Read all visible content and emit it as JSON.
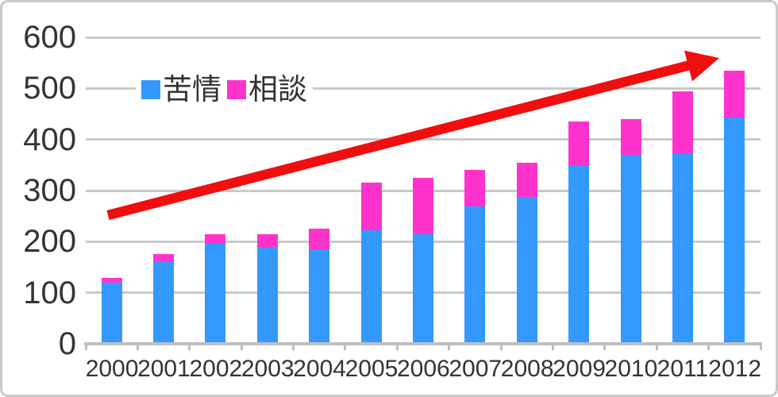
{
  "chart_data": {
    "type": "bar",
    "stacked": true,
    "title": "",
    "categories": [
      "2000",
      "2001",
      "2002",
      "2003",
      "2004",
      "2005",
      "2006",
      "2007",
      "2008",
      "2009",
      "2010",
      "2011",
      "2012"
    ],
    "series": [
      {
        "name": "苦情",
        "color": "#3399FF",
        "values": [
          119,
          160,
          196,
          188,
          185,
          222,
          214,
          269,
          288,
          348,
          370,
          373,
          443
        ]
      },
      {
        "name": "相談",
        "color": "#FF33CC",
        "values": [
          10,
          15,
          19,
          27,
          40,
          93,
          111,
          71,
          67,
          87,
          70,
          122,
          92
        ]
      }
    ],
    "stack_totals": [
      129,
      175,
      215,
      215,
      225,
      315,
      325,
      340,
      355,
      435,
      440,
      495,
      535
    ],
    "ylim": [
      0,
      600
    ],
    "yticks": [
      0,
      100,
      200,
      300,
      400,
      500,
      600
    ],
    "xlabel": "",
    "ylabel": "",
    "grid": true,
    "legend_position": "inside-top-left",
    "annotation": {
      "type": "arrow",
      "meaning": "upward trend",
      "color": "#F10E0E"
    }
  },
  "colors": {
    "gridline": "#C9C9C9",
    "axis": "#BFBFBF",
    "text": "#333333",
    "frame": "#C9C9C9",
    "background": "#FFFFFF"
  }
}
